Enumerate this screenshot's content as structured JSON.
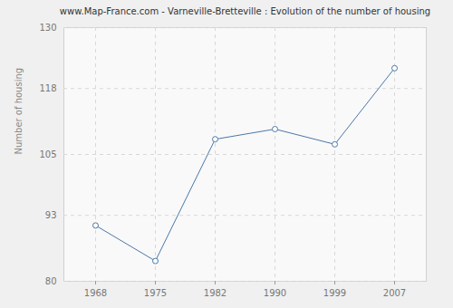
{
  "chart_data": {
    "type": "line",
    "title": "www.Map-France.com - Varneville-Bretteville : Evolution of the number of housing",
    "y_label": "Number of housing",
    "categories": [
      "1968",
      "1975",
      "1982",
      "1990",
      "1999",
      "2007"
    ],
    "values": [
      91,
      84,
      108,
      110,
      107,
      122
    ],
    "color": "#4a78a8",
    "marker": "circle",
    "ylim": [
      80,
      130
    ],
    "yticks": [
      80,
      93,
      105,
      118,
      130
    ],
    "grid": true
  }
}
